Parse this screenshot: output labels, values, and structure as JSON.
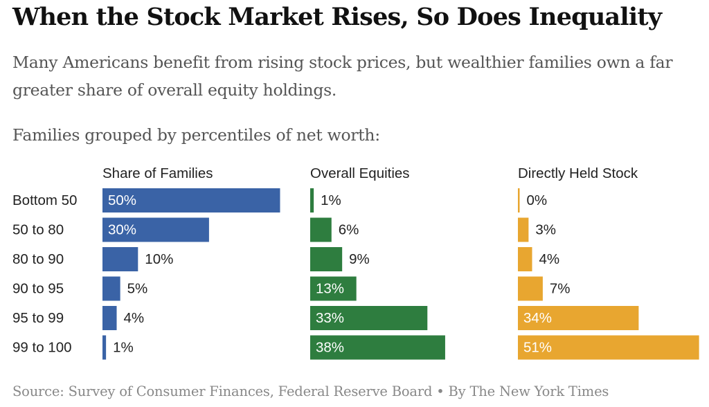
{
  "title": "When the Stock Market Rises, So Does Inequality",
  "subtitle": "Many Americans benefit from rising stock prices, but wealthier families own a far greater share of overall equity holdings.",
  "group_label": "Families grouped by percentiles of net worth:",
  "source": "Source: Survey of Consumer Finances, Federal Reserve Board • By The New York Times",
  "colors": {
    "share_of_families": "#3a63a6",
    "overall_equities": "#2e7d3f",
    "directly_held_stock": "#e8a630",
    "text_dark": "#222222",
    "text_light": "#ffffff"
  },
  "chart_data": {
    "type": "bar",
    "orientation": "horizontal",
    "categories": [
      "Bottom 50",
      "50 to 80",
      "80 to 90",
      "90 to 95",
      "95 to 99",
      "99 to 100"
    ],
    "series": [
      {
        "name": "Share of Families",
        "values": [
          50,
          30,
          10,
          5,
          4,
          1
        ],
        "labels": [
          "50%",
          "30%",
          "10%",
          "5%",
          "4%",
          "1%"
        ]
      },
      {
        "name": "Overall Equities",
        "values": [
          1,
          6,
          9,
          13,
          33,
          38
        ],
        "labels": [
          "1%",
          "6%",
          "9%",
          "13%",
          "33%",
          "38%"
        ]
      },
      {
        "name": "Directly Held Stock",
        "values": [
          0,
          3,
          4,
          7,
          34,
          51
        ],
        "labels": [
          "0%",
          "3%",
          "4%",
          "7%",
          "34%",
          "51%"
        ]
      }
    ]
  }
}
